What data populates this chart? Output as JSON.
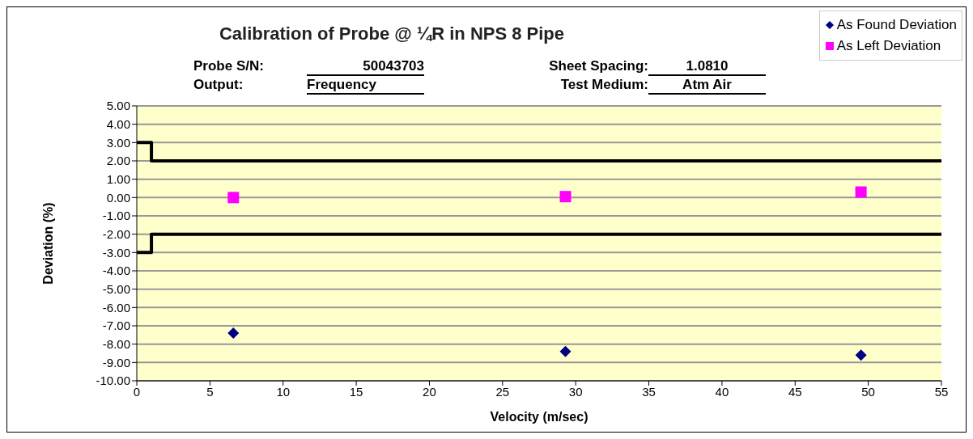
{
  "chart_data": {
    "type": "scatter",
    "title": "Calibration of Probe @ ¼R in NPS 8 Pipe",
    "annotations": [
      "Probe S/N:",
      "50043703",
      "Output:",
      "Frequency",
      "Sheet Spacing:",
      "1.0810",
      "Test Medium:",
      "Atm Air"
    ],
    "xlabel": "Velocity (m/sec)",
    "ylabel": "Deviation (%)",
    "series": [
      {
        "name": "As Found Deviation",
        "color": "#000080",
        "marker": "diamond",
        "x": [
          6.6,
          29.3,
          49.5
        ],
        "values": [
          -7.4,
          -8.4,
          -8.6
        ]
      },
      {
        "name": "As Left Deviation",
        "color": "#ff00ff",
        "marker": "square",
        "x": [
          6.6,
          29.3,
          49.5
        ],
        "values": [
          0.0,
          0.05,
          0.3
        ]
      },
      {
        "type": "step",
        "color": "#000000",
        "x": [
          0,
          1,
          55
        ],
        "values": [
          3,
          2,
          2
        ]
      },
      {
        "type": "step",
        "color": "#000000",
        "x": [
          0,
          1,
          55
        ],
        "values": [
          -3,
          -2,
          -2
        ]
      }
    ],
    "xlim": [
      0,
      55
    ],
    "xticks": [
      0,
      5,
      10,
      15,
      20,
      25,
      30,
      35,
      40,
      45,
      50,
      55
    ],
    "ylim": [
      -10,
      5
    ],
    "yticks": [
      {
        "value": 5,
        "label": "5.00"
      },
      {
        "value": 4,
        "label": "4.00"
      },
      {
        "value": 3,
        "label": "3.00"
      },
      {
        "value": 2,
        "label": "2.00"
      },
      {
        "value": 1,
        "label": "1.00"
      },
      {
        "value": 0,
        "label": "0.00"
      },
      {
        "value": -1,
        "label": "-1.00"
      },
      {
        "value": -2,
        "label": "-2.00"
      },
      {
        "value": -3,
        "label": "-3.00"
      },
      {
        "value": -4,
        "label": "-4.00"
      },
      {
        "value": -5,
        "label": "-5.00"
      },
      {
        "value": -6,
        "label": "-6.00"
      },
      {
        "value": -7,
        "label": "-7.00"
      },
      {
        "value": -8,
        "label": "-8.00"
      },
      {
        "value": -9,
        "label": "-9.00"
      },
      {
        "value": -10,
        "label": "-10.00"
      }
    ],
    "grid": "y",
    "legend": "top right"
  }
}
